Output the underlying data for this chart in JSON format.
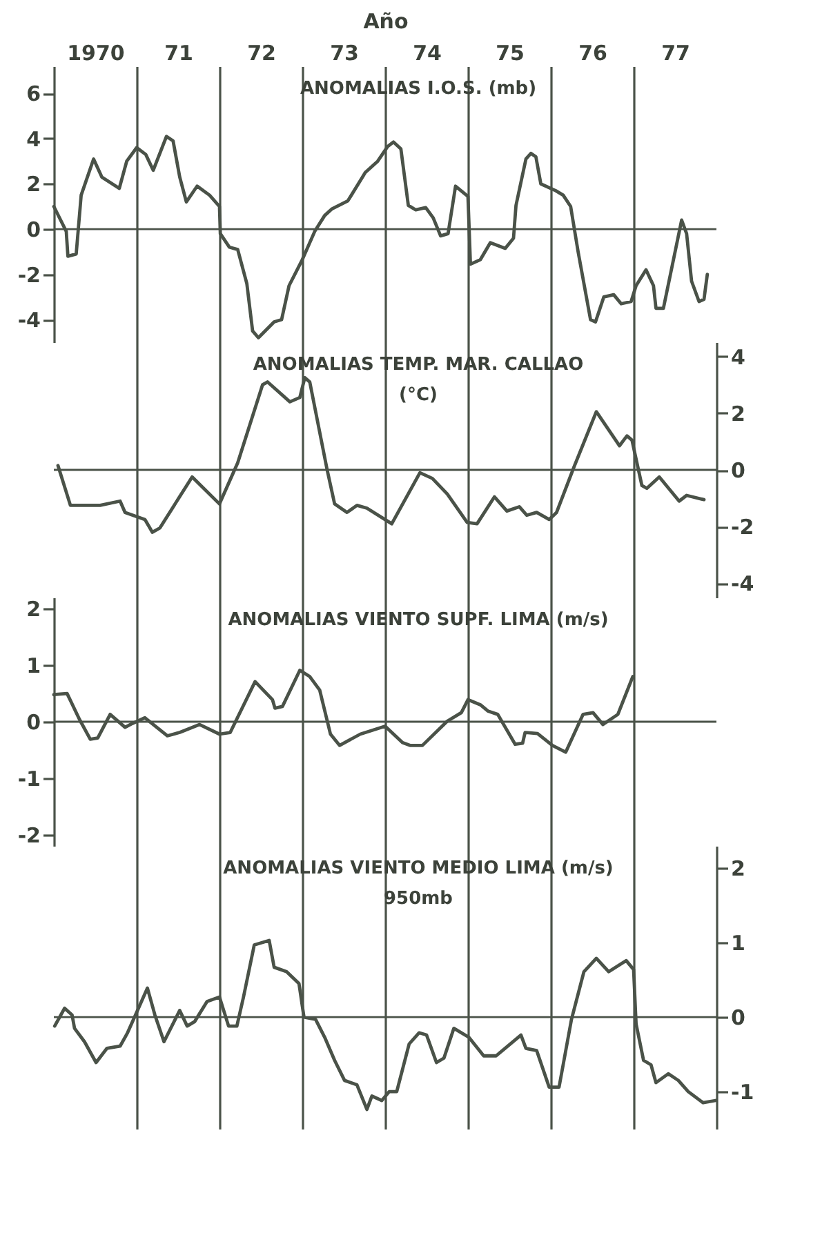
{
  "chart_data": [
    {
      "type": "line",
      "xlabel": "Año",
      "annotations": [
        "ANOMALIAS I.O.S. (mb)"
      ],
      "xlim": [
        1969.5,
        1977.5
      ],
      "xticks": [
        1970,
        {
          "value": 1970.5,
          "label": null
        },
        {
          "value": 1971,
          "label": "71"
        },
        {
          "value": 1971.5,
          "label": null
        },
        {
          "value": 1972,
          "label": "72"
        },
        {
          "value": 1972.5,
          "label": null
        },
        {
          "value": 1973,
          "label": "73"
        },
        {
          "value": 1973.5,
          "label": null
        },
        {
          "value": 1974,
          "label": "74"
        },
        {
          "value": 1974.5,
          "label": null
        },
        {
          "value": 1975,
          "label": "75"
        },
        {
          "value": 1975.5,
          "label": null
        },
        {
          "value": 1976,
          "label": "76"
        },
        {
          "value": 1976.5,
          "label": null
        },
        {
          "value": 1977,
          "label": "77"
        }
      ],
      "ylim": [
        -5,
        7.2
      ],
      "yticks": [
        -4,
        -2,
        0,
        2,
        4,
        6
      ],
      "grid": "x",
      "ref_lines": [
        {
          "axis": "y",
          "value": 0
        }
      ],
      "series": [
        {
          "color": "#4a5248",
          "x": [
            1969.5,
            1969.65,
            1969.67,
            1969.77,
            1969.83,
            1969.98,
            1970.08,
            1970.29,
            1970.38,
            1970.5,
            1970.61,
            1970.7,
            1970.86,
            1970.94,
            1971.02,
            1971.1,
            1971.23,
            1971.38,
            1971.5,
            1971.51,
            1971.62,
            1971.72,
            1971.83,
            1971.9,
            1971.97,
            1972.16,
            1972.25,
            1972.34,
            1972.5,
            1972.65,
            1972.77,
            1972.86,
            1973.05,
            1973.26,
            1973.41,
            1973.53,
            1973.6,
            1973.69,
            1973.78,
            1973.87,
            1973.99,
            1974.08,
            1974.17,
            1974.26,
            1974.35,
            1974.5,
            1974.53,
            1974.65,
            1974.77,
            1974.95,
            1975.05,
            1975.08,
            1975.2,
            1975.26,
            1975.32,
            1975.38,
            1975.56,
            1975.65,
            1975.74,
            1975.83,
            1975.98,
            1976.04,
            1976.14,
            1976.26,
            1976.35,
            1976.47,
            1976.53,
            1976.65,
            1976.74,
            1976.77,
            1976.86,
            1977.08,
            1977.14,
            1977.2,
            1977.29,
            1977.35,
            1977.39
          ],
          "values": [
            1.0,
            -0.1,
            -1.2,
            -1.1,
            1.5,
            3.1,
            2.3,
            1.8,
            3.0,
            3.6,
            3.3,
            2.6,
            4.1,
            3.9,
            2.3,
            1.2,
            1.9,
            1.5,
            1.0,
            -0.2,
            -0.8,
            -0.9,
            -2.4,
            -4.5,
            -4.8,
            -4.1,
            -4.0,
            -2.5,
            -1.35,
            -0.1,
            0.6,
            0.9,
            1.25,
            2.5,
            3.0,
            3.65,
            3.85,
            3.55,
            1.05,
            0.85,
            0.95,
            0.5,
            -0.3,
            -0.2,
            1.9,
            1.45,
            -1.55,
            -1.35,
            -0.6,
            -0.85,
            -0.4,
            1.05,
            3.1,
            3.35,
            3.2,
            2.0,
            1.7,
            1.5,
            1.0,
            -1.0,
            -4.0,
            -4.1,
            -3.0,
            -2.9,
            -3.3,
            -3.2,
            -2.5,
            -1.8,
            -2.5,
            -3.5,
            -3.5,
            0.4,
            -0.2,
            -2.3,
            -3.2,
            -3.1,
            -2.0
          ]
        }
      ]
    },
    {
      "type": "line",
      "annotations": [
        "ANOMALIAS   TEMP. MAR. CALLAO",
        "(°C)"
      ],
      "xlim": [
        1969.5,
        1977.5
      ],
      "xticks": [
        1970.5,
        1971.5,
        1972.5,
        1973.5,
        1974.5,
        1975.5,
        1976.5
      ],
      "y2lim": [
        -4.5,
        4.5
      ],
      "y2ticks": [
        -4,
        -2,
        0,
        2,
        4
      ],
      "grid": "x",
      "tick_labels": "y",
      "ref_lines": [
        {
          "axis": "y2",
          "value": 0
        }
      ],
      "series": [
        {
          "color": "#4a5248",
          "axis": "y2",
          "x": [
            1969.55,
            1969.7,
            1970.06,
            1970.3,
            1970.36,
            1970.6,
            1970.69,
            1970.78,
            1971.17,
            1971.5,
            1971.72,
            1972.02,
            1972.08,
            1972.35,
            1972.47,
            1972.53,
            1972.59,
            1972.8,
            1972.89,
            1973.04,
            1973.16,
            1973.28,
            1973.58,
            1973.92,
            1974.07,
            1974.25,
            1974.49,
            1974.61,
            1974.82,
            1974.97,
            1975.12,
            1975.21,
            1975.33,
            1975.48,
            1975.57,
            1975.78,
            1976.05,
            1976.33,
            1976.42,
            1976.48,
            1976.6,
            1976.66,
            1976.81,
            1977.05,
            1977.14,
            1977.35
          ],
          "values": [
            0.15,
            -1.25,
            -1.25,
            -1.1,
            -1.5,
            -1.75,
            -2.2,
            -2.05,
            -0.25,
            -1.2,
            0.25,
            3.0,
            3.1,
            2.4,
            2.55,
            3.25,
            3.1,
            0.0,
            -1.2,
            -1.5,
            -1.25,
            -1.35,
            -1.9,
            -0.1,
            -0.3,
            -0.85,
            -1.85,
            -1.9,
            -0.95,
            -1.45,
            -1.3,
            -1.6,
            -1.5,
            -1.75,
            -1.5,
            0.1,
            2.05,
            0.85,
            1.2,
            1.05,
            -0.55,
            -0.65,
            -0.25,
            -1.1,
            -0.9,
            -1.05
          ]
        }
      ]
    },
    {
      "type": "line",
      "annotations": [
        "ANOMALIAS   VIENTO SUPF. LIMA (m/s)"
      ],
      "xlim": [
        1969.5,
        1977.5
      ],
      "xticks": [
        1970.5,
        1971.5,
        1972.5,
        1973.5,
        1974.5,
        1975.5,
        1976.5
      ],
      "ylim": [
        -2.2,
        2.2
      ],
      "yticks": [
        -2,
        -1,
        0,
        1,
        2
      ],
      "grid": "x",
      "tick_labels": "y",
      "ref_lines": [
        {
          "axis": "y",
          "value": 0
        }
      ],
      "series": [
        {
          "color": "#4a5248",
          "x": [
            1969.5,
            1969.66,
            1969.81,
            1969.94,
            1970.03,
            1970.18,
            1970.36,
            1970.45,
            1970.6,
            1970.87,
            1971.02,
            1971.26,
            1971.5,
            1971.63,
            1971.93,
            1972.14,
            1972.17,
            1972.26,
            1972.47,
            1972.59,
            1972.71,
            1972.84,
            1972.95,
            1973.2,
            1973.5,
            1973.71,
            1973.8,
            1973.95,
            1974.25,
            1974.42,
            1974.5,
            1974.65,
            1974.74,
            1974.86,
            1975.07,
            1975.16,
            1975.19,
            1975.34,
            1975.52,
            1975.68,
            1975.89,
            1976.01,
            1976.13,
            1976.31,
            1976.49
          ],
          "values": [
            0.48,
            0.5,
            0.04,
            -0.31,
            -0.29,
            0.13,
            -0.1,
            -0.03,
            0.07,
            -0.25,
            -0.19,
            -0.05,
            -0.22,
            -0.19,
            0.71,
            0.39,
            0.24,
            0.27,
            0.91,
            0.8,
            0.56,
            -0.22,
            -0.42,
            -0.22,
            -0.08,
            -0.37,
            -0.42,
            -0.42,
            0.01,
            0.16,
            0.39,
            0.3,
            0.19,
            0.13,
            -0.4,
            -0.38,
            -0.19,
            -0.21,
            -0.42,
            -0.54,
            0.13,
            0.16,
            -0.05,
            0.13,
            0.8
          ]
        }
      ]
    },
    {
      "type": "line",
      "annotations": [
        "ANOMALIAS   VIENTO MEDIO LIMA (m/s)",
        "950mb"
      ],
      "xlim": [
        1969.5,
        1977.5
      ],
      "xticks": [
        1970.5,
        1971.5,
        1972.5,
        1973.5,
        1974.5,
        1975.5,
        1976.5
      ],
      "y2lim": [
        -1.5,
        2.3
      ],
      "y2ticks": [
        -1,
        0,
        1,
        2
      ],
      "grid": "x",
      "tick_labels": "y",
      "ref_lines": [
        {
          "axis": "y2",
          "value": 0
        }
      ],
      "series": [
        {
          "color": "#4a5248",
          "axis": "y2",
          "x": [
            1969.51,
            1969.63,
            1969.72,
            1969.75,
            1969.87,
            1970.01,
            1970.14,
            1970.3,
            1970.39,
            1970.51,
            1970.63,
            1970.72,
            1970.83,
            1971.02,
            1971.11,
            1971.2,
            1971.35,
            1971.5,
            1971.61,
            1971.71,
            1971.79,
            1971.92,
            1972.1,
            1972.16,
            1972.31,
            1972.46,
            1972.52,
            1972.66,
            1972.77,
            1972.89,
            1973.01,
            1973.16,
            1973.28,
            1973.34,
            1973.46,
            1973.55,
            1973.64,
            1973.79,
            1973.91,
            1974.0,
            1974.12,
            1974.21,
            1974.33,
            1974.51,
            1974.69,
            1974.84,
            1975.14,
            1975.2,
            1975.33,
            1975.48,
            1975.6,
            1975.75,
            1975.9,
            1976.05,
            1976.2,
            1976.41,
            1976.5,
            1976.53,
            1976.62,
            1976.71,
            1976.77,
            1976.92,
            1977.04,
            1977.16,
            1977.34,
            1977.49
          ],
          "values": [
            -0.12,
            0.12,
            0.03,
            -0.15,
            -0.33,
            -0.61,
            -0.42,
            -0.39,
            -0.21,
            0.09,
            0.39,
            0.03,
            -0.33,
            0.09,
            -0.12,
            -0.06,
            0.21,
            0.27,
            -0.12,
            -0.12,
            0.27,
            0.97,
            1.03,
            0.67,
            0.61,
            0.45,
            0.0,
            -0.03,
            -0.27,
            -0.58,
            -0.85,
            -0.91,
            -1.24,
            -1.06,
            -1.12,
            -1.0,
            -1.0,
            -0.36,
            -0.21,
            -0.24,
            -0.61,
            -0.55,
            -0.15,
            -0.27,
            -0.52,
            -0.52,
            -0.24,
            -0.42,
            -0.45,
            -0.94,
            -0.94,
            -0.03,
            0.61,
            0.79,
            0.61,
            0.76,
            0.64,
            -0.09,
            -0.58,
            -0.64,
            -0.88,
            -0.76,
            -0.85,
            -1.0,
            -1.15,
            -1.12
          ]
        }
      ]
    }
  ]
}
